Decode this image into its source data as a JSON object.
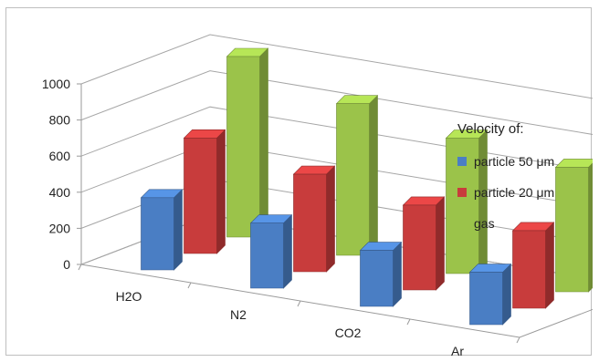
{
  "chart_data": {
    "type": "bar",
    "subtype": "3d-clustered-depth",
    "categories": [
      "H2O",
      "N2",
      "CO2",
      "Ar"
    ],
    "series": [
      {
        "name": "particle 50 μm",
        "color": "#4a7ec4",
        "values": [
          400,
          360,
          310,
          290
        ]
      },
      {
        "name": "particle 20 μm",
        "color": "#c83c3c",
        "values": [
          640,
          540,
          470,
          430
        ]
      },
      {
        "name": "gas",
        "color": "#9bc34a",
        "values": [
          1000,
          840,
          750,
          690
        ]
      }
    ],
    "yticks": [
      "0",
      "200",
      "400",
      "600",
      "800",
      "1000"
    ],
    "ylim": [
      0,
      1000
    ],
    "grid": true,
    "legend_title": "Velocity of:",
    "legend_position": "right"
  }
}
